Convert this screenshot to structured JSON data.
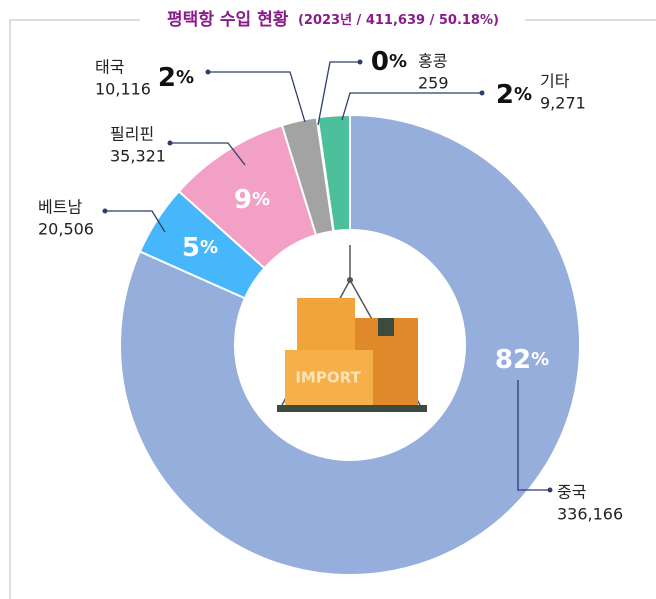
{
  "chart_data": {
    "type": "donut",
    "title": "평택항 수입 현황",
    "subtitle": "(2023년 / 411,639 / 50.18%)",
    "categories": [
      "중국",
      "베트남",
      "필리핀",
      "태국",
      "홍콩",
      "기타"
    ],
    "values": [
      336166,
      20506,
      35321,
      10116,
      259,
      9271
    ],
    "value_labels": [
      "336,166",
      "20,506",
      "35,321",
      "10,116",
      "259",
      "9,271"
    ],
    "percent_labels": [
      "82%",
      "5%",
      "9%",
      "2%",
      "0%",
      "2%"
    ],
    "colors": [
      "#95aedb",
      "#46b7fb",
      "#f2a0c6",
      "#a3a3a3",
      "#d9d9d9",
      "#4cbf9b"
    ],
    "icon_label": "IMPORT"
  }
}
